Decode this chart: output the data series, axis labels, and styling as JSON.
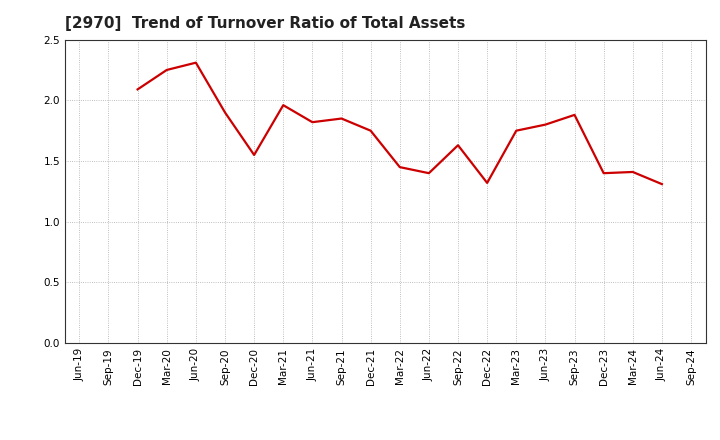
{
  "title": "[2970]  Trend of Turnover Ratio of Total Assets",
  "x_labels": [
    "Jun-19",
    "Sep-19",
    "Dec-19",
    "Mar-20",
    "Jun-20",
    "Sep-20",
    "Dec-20",
    "Mar-21",
    "Jun-21",
    "Sep-21",
    "Dec-21",
    "Mar-22",
    "Jun-22",
    "Sep-22",
    "Dec-22",
    "Mar-23",
    "Jun-23",
    "Sep-23",
    "Dec-23",
    "Mar-24",
    "Jun-24",
    "Sep-24"
  ],
  "y_values": [
    null,
    null,
    2.09,
    2.25,
    2.31,
    1.9,
    1.55,
    1.96,
    1.82,
    1.85,
    1.75,
    1.45,
    1.4,
    1.63,
    1.32,
    1.75,
    1.8,
    1.88,
    1.4,
    1.41,
    1.31,
    null
  ],
  "line_color": "#cc0000",
  "line_width": 1.6,
  "ylim": [
    0.0,
    2.5
  ],
  "yticks": [
    0.0,
    0.5,
    1.0,
    1.5,
    2.0,
    2.5
  ],
  "grid_color": "#aaaaaa",
  "background_color": "#ffffff",
  "title_fontsize": 11,
  "tick_fontsize": 7.5
}
